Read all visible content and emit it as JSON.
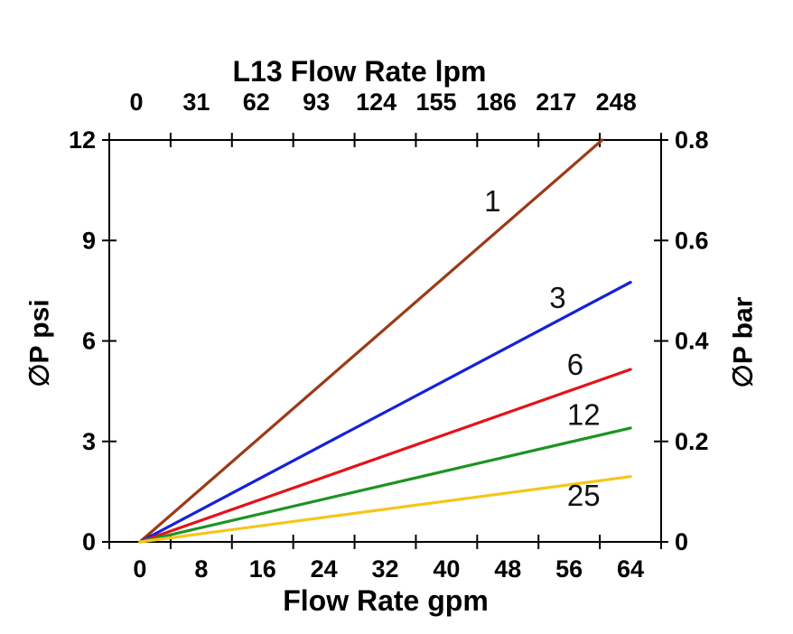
{
  "window": {
    "background": "#ffffff",
    "axis_color": "#000000"
  },
  "chart_data": {
    "type": "line",
    "title": "L13 Flow Rate lpm",
    "grid": false,
    "legend": "inline-curve-labels",
    "top_axis": {
      "label": "L13 Flow Rate lpm",
      "unit": "lpm",
      "tick_labels": [
        "0",
        "31",
        "62",
        "93",
        "124",
        "155",
        "186",
        "217",
        "248"
      ],
      "range": [
        0,
        248
      ]
    },
    "bottom_axis": {
      "label": "Flow Rate gpm",
      "unit": "gpm",
      "tick_labels": [
        "0",
        "8",
        "16",
        "24",
        "32",
        "40",
        "48",
        "56",
        "64"
      ],
      "range": [
        0,
        64
      ]
    },
    "left_axis": {
      "label": "∅P psi",
      "unit": "psi",
      "tick_labels": [
        "0",
        "3",
        "6",
        "9",
        "12"
      ],
      "range": [
        0,
        12
      ]
    },
    "right_axis": {
      "label": "∅P bar",
      "unit": "bar",
      "tick_labels": [
        "0",
        "0.2",
        "0.4",
        "0.6",
        "0.8"
      ],
      "range": [
        0,
        0.8
      ]
    },
    "series": [
      {
        "name": "1",
        "color": "#9C3A17",
        "points_gpm_psi": [
          [
            0,
            0
          ],
          [
            60.3,
            12
          ]
        ]
      },
      {
        "name": "3",
        "color": "#1322D8",
        "points_gpm_psi": [
          [
            0,
            0
          ],
          [
            64,
            7.75
          ]
        ]
      },
      {
        "name": "6",
        "color": "#E51219",
        "points_gpm_psi": [
          [
            0,
            0
          ],
          [
            64,
            5.15
          ]
        ]
      },
      {
        "name": "12",
        "color": "#1C9422",
        "points_gpm_psi": [
          [
            0,
            0
          ],
          [
            64,
            3.4
          ]
        ]
      },
      {
        "name": "25",
        "color": "#F6C51B",
        "points_gpm_psi": [
          [
            0,
            0
          ],
          [
            64,
            1.95
          ]
        ]
      }
    ]
  }
}
